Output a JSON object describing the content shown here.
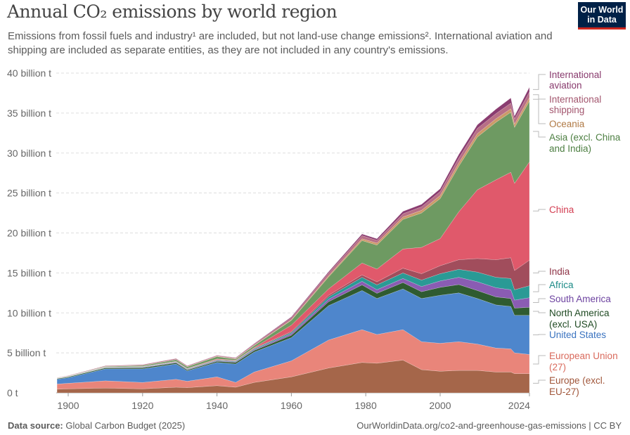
{
  "header": {
    "title": "Annual CO₂ emissions by world region",
    "subtitle": "Emissions from fossil fuels and industry¹ are included, but not land-use change emissions². International aviation and shipping are included as separate entities, as they are not included in any country's emissions.",
    "logo": "Our World in Data"
  },
  "footer": {
    "source_label": "Data source:",
    "source": "Global Carbon Budget (2025)",
    "url": "OurWorldinData.org/co2-and-greenhouse-gas-emissions | CC BY"
  },
  "chart_data": {
    "type": "area",
    "stacked": true,
    "title": "Annual CO₂ emissions by world region",
    "ylabel": "",
    "xlabel": "",
    "xlim": [
      1897,
      2024
    ],
    "ylim": [
      0,
      40
    ],
    "grid": "horizontal dashed",
    "x_ticks": [
      "1900",
      "1920",
      "1940",
      "1960",
      "1980",
      "2000",
      "2024"
    ],
    "y_ticks": [
      "0 t",
      "5 billion t",
      "10 billion t",
      "15 billion t",
      "20 billion t",
      "25 billion t",
      "30 billion t",
      "35 billion t",
      "40 billion t"
    ],
    "legend_placement": "right (inline labels)",
    "unit": "billion tonnes",
    "x": [
      1897,
      1900,
      1910,
      1920,
      1929,
      1932,
      1940,
      1945,
      1950,
      1960,
      1970,
      1979,
      1983,
      1990,
      1995,
      2000,
      2005,
      2010,
      2015,
      2019,
      2020,
      2024
    ],
    "series": [
      {
        "name": "Europe (excl. EU-27)",
        "color": "#a5664a",
        "label_color": "#a0563a",
        "values": [
          0.45,
          0.5,
          0.6,
          0.5,
          0.7,
          0.65,
          0.9,
          0.7,
          1.3,
          2.0,
          3.1,
          3.8,
          3.7,
          4.1,
          2.9,
          2.7,
          2.8,
          2.8,
          2.6,
          2.6,
          2.4,
          2.4
        ]
      },
      {
        "name": "European Union (27)",
        "color": "#e9857a",
        "label_color": "#d96a5c",
        "values": [
          0.65,
          0.7,
          0.9,
          0.8,
          1.0,
          0.8,
          1.1,
          0.6,
          1.3,
          2.0,
          3.5,
          4.1,
          3.6,
          3.8,
          3.5,
          3.5,
          3.6,
          3.3,
          3.0,
          2.9,
          2.6,
          2.4
        ]
      },
      {
        "name": "United States",
        "color": "#4e86cc",
        "label_color": "#3a73c0",
        "values": [
          0.6,
          0.7,
          1.5,
          1.7,
          1.9,
          1.3,
          1.8,
          2.3,
          2.5,
          2.9,
          4.3,
          4.9,
          4.5,
          5.1,
          5.4,
          6.0,
          6.1,
          5.7,
          5.4,
          5.3,
          4.7,
          4.9
        ]
      },
      {
        "name": "North America (excl. USA)",
        "color": "#2f5b31",
        "label_color": "#1f4a22",
        "values": [
          0.08,
          0.1,
          0.12,
          0.15,
          0.15,
          0.12,
          0.15,
          0.2,
          0.2,
          0.3,
          0.5,
          0.7,
          0.65,
          0.8,
          0.85,
          1.0,
          1.05,
          1.0,
          1.0,
          1.0,
          0.9,
          1.0
        ]
      },
      {
        "name": "South America",
        "color": "#8a5cb3",
        "label_color": "#6d43a0",
        "values": [
          0.02,
          0.02,
          0.04,
          0.05,
          0.07,
          0.06,
          0.08,
          0.09,
          0.11,
          0.2,
          0.3,
          0.45,
          0.45,
          0.5,
          0.65,
          0.8,
          0.9,
          1.1,
          1.15,
          1.1,
          1.0,
          1.2
        ]
      },
      {
        "name": "Africa",
        "color": "#2a9a95",
        "label_color": "#1b8a86",
        "values": [
          0.02,
          0.02,
          0.03,
          0.04,
          0.05,
          0.05,
          0.07,
          0.08,
          0.1,
          0.15,
          0.3,
          0.5,
          0.6,
          0.7,
          0.8,
          0.9,
          1.0,
          1.2,
          1.3,
          1.4,
          1.3,
          1.5
        ]
      },
      {
        "name": "India",
        "color": "#a14d5c",
        "label_color": "#8e3346",
        "values": [
          0.01,
          0.02,
          0.03,
          0.04,
          0.05,
          0.05,
          0.06,
          0.06,
          0.07,
          0.12,
          0.2,
          0.3,
          0.38,
          0.6,
          0.8,
          1.0,
          1.2,
          1.7,
          2.2,
          2.6,
          2.4,
          3.2
        ]
      },
      {
        "name": "China",
        "color": "#e0596b",
        "label_color": "#d33e52",
        "values": [
          0.0,
          0.0,
          0.01,
          0.02,
          0.03,
          0.03,
          0.08,
          0.05,
          0.08,
          0.8,
          0.8,
          1.5,
          1.6,
          2.4,
          3.3,
          3.4,
          6.0,
          8.6,
          10.0,
          10.7,
          10.9,
          12.3
        ]
      },
      {
        "name": "Asia (excl. China and India)",
        "color": "#6e9a62",
        "label_color": "#4d7f42",
        "values": [
          0.02,
          0.03,
          0.07,
          0.12,
          0.2,
          0.2,
          0.3,
          0.15,
          0.25,
          0.6,
          1.5,
          2.8,
          3.0,
          3.7,
          4.3,
          5.0,
          5.7,
          6.6,
          7.2,
          7.5,
          7.0,
          7.6
        ]
      },
      {
        "name": "Oceania",
        "color": "#cc9a68",
        "label_color": "#b07a45",
        "values": [
          0.01,
          0.01,
          0.02,
          0.02,
          0.03,
          0.03,
          0.04,
          0.04,
          0.05,
          0.08,
          0.15,
          0.22,
          0.25,
          0.3,
          0.33,
          0.38,
          0.42,
          0.43,
          0.44,
          0.44,
          0.42,
          0.44
        ]
      },
      {
        "name": "International shipping",
        "color": "#b86f86",
        "label_color": "#a3566e",
        "values": [
          0.05,
          0.06,
          0.08,
          0.1,
          0.12,
          0.1,
          0.1,
          0.1,
          0.15,
          0.25,
          0.35,
          0.4,
          0.35,
          0.4,
          0.45,
          0.5,
          0.6,
          0.65,
          0.65,
          0.7,
          0.65,
          0.7
        ]
      },
      {
        "name": "International aviation",
        "color": "#8a3c70",
        "label_color": "#883a6d",
        "values": [
          0,
          0,
          0,
          0,
          0.01,
          0.01,
          0.02,
          0.03,
          0.05,
          0.1,
          0.15,
          0.2,
          0.2,
          0.3,
          0.3,
          0.35,
          0.45,
          0.45,
          0.55,
          0.65,
          0.35,
          0.6
        ]
      }
    ]
  }
}
